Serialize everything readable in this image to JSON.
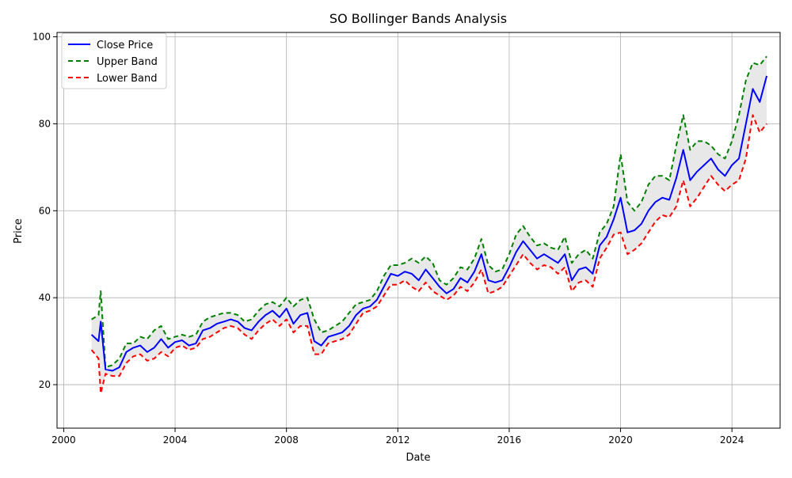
{
  "chart_data": {
    "type": "line",
    "title": "SO Bollinger Bands Analysis",
    "xlabel": "Date",
    "ylabel": "Price",
    "x_range": [
      1999.76,
      2025.73
    ],
    "ylim": [
      10,
      101
    ],
    "xticks": [
      {
        "value": 2000,
        "label": "2000"
      },
      {
        "value": 2004,
        "label": "2004"
      },
      {
        "value": 2008,
        "label": "2008"
      },
      {
        "value": 2012,
        "label": "2012"
      },
      {
        "value": 2016,
        "label": "2016"
      },
      {
        "value": 2020,
        "label": "2020"
      },
      {
        "value": 2024,
        "label": "2024"
      }
    ],
    "yticks": [
      {
        "value": 20,
        "label": "20"
      },
      {
        "value": 40,
        "label": "40"
      },
      {
        "value": 60,
        "label": "60"
      },
      {
        "value": 80,
        "label": "80"
      },
      {
        "value": 100,
        "label": "100"
      }
    ],
    "grid": true,
    "legend": "top-left",
    "band_fill": "#e8e8e8",
    "x": [
      2001.0,
      2001.25,
      2001.33,
      2001.5,
      2001.75,
      2002.0,
      2002.25,
      2002.5,
      2002.75,
      2003.0,
      2003.25,
      2003.5,
      2003.75,
      2004.0,
      2004.25,
      2004.5,
      2004.75,
      2005.0,
      2005.25,
      2005.5,
      2005.75,
      2006.0,
      2006.25,
      2006.5,
      2006.75,
      2007.0,
      2007.25,
      2007.5,
      2007.75,
      2008.0,
      2008.25,
      2008.5,
      2008.75,
      2009.0,
      2009.25,
      2009.5,
      2009.75,
      2010.0,
      2010.25,
      2010.5,
      2010.75,
      2011.0,
      2011.25,
      2011.5,
      2011.75,
      2012.0,
      2012.25,
      2012.5,
      2012.75,
      2013.0,
      2013.25,
      2013.5,
      2013.75,
      2014.0,
      2014.25,
      2014.5,
      2014.75,
      2015.0,
      2015.25,
      2015.5,
      2015.75,
      2016.0,
      2016.25,
      2016.5,
      2016.75,
      2017.0,
      2017.25,
      2017.5,
      2017.75,
      2018.0,
      2018.25,
      2018.5,
      2018.75,
      2019.0,
      2019.25,
      2019.5,
      2019.75,
      2020.0,
      2020.25,
      2020.5,
      2020.75,
      2021.0,
      2021.25,
      2021.5,
      2021.75,
      2022.0,
      2022.25,
      2022.5,
      2022.75,
      2023.0,
      2023.25,
      2023.5,
      2023.75,
      2024.0,
      2024.25,
      2024.5,
      2024.75,
      2025.0,
      2025.25
    ],
    "series": [
      {
        "name": "Close Price",
        "color": "#0000ff",
        "dash": "solid",
        "width": 2,
        "values": [
          31.5,
          30.0,
          34.5,
          23.5,
          23.2,
          24.0,
          27.5,
          28.5,
          29.0,
          27.5,
          28.5,
          30.5,
          28.5,
          29.8,
          30.2,
          29.0,
          29.5,
          32.5,
          33.0,
          34.0,
          34.5,
          35.0,
          34.5,
          33.0,
          32.5,
          34.5,
          36.0,
          37.0,
          35.5,
          37.5,
          34.0,
          36.0,
          36.5,
          30.0,
          29.0,
          31.0,
          31.5,
          32.0,
          33.5,
          36.0,
          37.5,
          38.0,
          39.5,
          42.5,
          45.5,
          45.0,
          46.0,
          45.5,
          44.0,
          46.5,
          44.5,
          42.5,
          41.0,
          42.0,
          44.5,
          43.5,
          46.0,
          50.0,
          44.0,
          43.5,
          44.0,
          47.0,
          50.5,
          53.0,
          51.0,
          49.0,
          50.0,
          49.0,
          48.0,
          50.0,
          44.0,
          46.5,
          47.0,
          45.5,
          52.0,
          54.0,
          58.0,
          63.0,
          55.0,
          55.5,
          57.0,
          60.0,
          62.0,
          63.0,
          62.5,
          67.5,
          74.0,
          67.0,
          69.0,
          70.5,
          72.0,
          69.5,
          68.0,
          70.5,
          72.0,
          80.0,
          88.0,
          85.0,
          91.0
        ],
        "bind": "legend.close"
      },
      {
        "name": "Upper Band",
        "color": "#008000",
        "dash": "6,4",
        "width": 2,
        "values": [
          35.0,
          36.0,
          41.5,
          24.0,
          24.5,
          26.0,
          29.5,
          29.5,
          31.0,
          30.5,
          32.5,
          33.5,
          30.5,
          31.0,
          31.5,
          31.0,
          31.5,
          34.5,
          35.5,
          36.0,
          36.5,
          36.5,
          36.0,
          34.5,
          35.0,
          37.0,
          38.5,
          39.0,
          38.0,
          40.0,
          38.0,
          39.5,
          40.0,
          35.0,
          32.0,
          32.5,
          33.5,
          34.5,
          36.5,
          38.5,
          39.0,
          39.5,
          41.5,
          45.0,
          47.5,
          47.5,
          48.0,
          49.0,
          48.0,
          49.5,
          48.0,
          44.0,
          43.0,
          44.5,
          47.0,
          46.5,
          49.0,
          53.5,
          47.5,
          46.0,
          46.5,
          50.0,
          54.5,
          56.5,
          54.0,
          52.0,
          52.5,
          51.5,
          51.0,
          54.0,
          48.0,
          50.0,
          51.0,
          49.0,
          55.0,
          57.0,
          61.0,
          73.0,
          62.0,
          60.0,
          62.0,
          66.0,
          68.0,
          68.0,
          67.0,
          75.0,
          82.0,
          74.0,
          76.0,
          76.0,
          75.0,
          73.0,
          72.0,
          76.0,
          82.0,
          90.0,
          94.0,
          93.5,
          95.5
        ],
        "bind": "legend.upper"
      },
      {
        "name": "Lower Band",
        "color": "#ff0000",
        "dash": "6,4",
        "width": 2,
        "values": [
          28.0,
          26.0,
          18.0,
          22.5,
          22.0,
          22.0,
          25.0,
          26.5,
          27.0,
          25.5,
          26.0,
          27.5,
          26.5,
          28.5,
          29.0,
          28.0,
          28.5,
          30.5,
          31.0,
          32.0,
          33.0,
          33.5,
          33.0,
          31.5,
          30.5,
          32.5,
          34.0,
          35.0,
          33.5,
          35.0,
          32.0,
          33.5,
          33.5,
          27.0,
          27.0,
          29.5,
          30.0,
          30.5,
          31.5,
          34.0,
          36.5,
          37.0,
          38.0,
          40.5,
          43.0,
          43.0,
          44.0,
          42.5,
          41.5,
          43.5,
          41.5,
          40.5,
          39.5,
          40.5,
          42.5,
          41.5,
          43.5,
          46.5,
          41.0,
          41.5,
          42.5,
          45.0,
          47.5,
          50.0,
          48.0,
          46.5,
          47.5,
          47.0,
          45.5,
          47.0,
          41.5,
          43.5,
          44.0,
          42.5,
          49.0,
          51.5,
          54.5,
          55.0,
          50.0,
          51.0,
          52.5,
          55.0,
          57.5,
          59.0,
          58.5,
          61.0,
          67.0,
          61.0,
          63.0,
          65.5,
          68.0,
          66.0,
          64.5,
          66.0,
          67.0,
          72.0,
          82.0,
          78.0,
          80.0
        ],
        "bind": "legend.lower"
      }
    ]
  },
  "legend": {
    "close": "Close Price",
    "upper": "Upper Band",
    "lower": "Lower Band"
  }
}
